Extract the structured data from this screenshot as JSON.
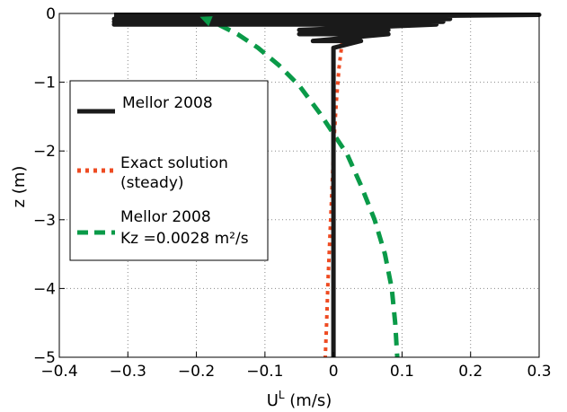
{
  "chart_data": {
    "type": "line",
    "title": "",
    "xlabel": "U",
    "xlabel_superscript": "L",
    "xlabel_units": " (m/s)",
    "ylabel": "z (m)",
    "xlim": [
      -0.4,
      0.3
    ],
    "ylim": [
      -5,
      0
    ],
    "xticks": [
      -0.4,
      -0.3,
      -0.2,
      -0.1,
      0,
      0.1,
      0.2,
      0.3
    ],
    "xtick_labels": [
      "−0.4",
      "−0.3",
      "−0.2",
      "−0.1",
      "0",
      "0.1",
      "0.2",
      "0.3"
    ],
    "yticks": [
      0,
      -1,
      -2,
      -3,
      -4,
      -5
    ],
    "ytick_labels": [
      "0",
      "−1",
      "−2",
      "−3",
      "−4",
      "−5"
    ],
    "grid": true,
    "legend_position": "left",
    "series": [
      {
        "name": "Mellor 2008",
        "color": "#1a1a1a",
        "style": "solid",
        "x": [
          -0.32,
          0.3,
          -0.32,
          0.17,
          -0.32,
          0.16,
          -0.32,
          0.15,
          -0.05,
          0.08,
          -0.05,
          0.08,
          -0.03,
          0.04,
          0.0,
          0.0
        ],
        "y": [
          -0.02,
          -0.02,
          -0.08,
          -0.08,
          -0.12,
          -0.12,
          -0.16,
          -0.16,
          -0.24,
          -0.24,
          -0.3,
          -0.3,
          -0.4,
          -0.4,
          -0.5,
          -5.0
        ]
      },
      {
        "name": "Exact solution (steady)",
        "name_line2": "(steady)",
        "name_line1": "Exact solution",
        "color": "#ee4b22",
        "style": "dotted",
        "x": [
          0.016,
          0.014,
          0.008,
          0.004,
          0.001,
          -0.002,
          -0.005,
          -0.008,
          -0.01,
          -0.012
        ],
        "y": [
          -0.05,
          -0.3,
          -0.8,
          -1.3,
          -1.8,
          -2.5,
          -3.2,
          -3.9,
          -4.5,
          -5.0
        ]
      },
      {
        "name": "Mellor 2008 Kz =0.0028 m²/s",
        "name_line1": "Mellor 2008",
        "name_line2": "Kz =0.0028 m²/s",
        "color": "#0a9a48",
        "style": "dashed",
        "x": [
          -0.195,
          -0.17,
          -0.14,
          -0.11,
          -0.08,
          -0.05,
          -0.02,
          0.0,
          0.02,
          0.04,
          0.06,
          0.075,
          0.085,
          0.09,
          0.093
        ],
        "y": [
          -0.05,
          -0.15,
          -0.3,
          -0.5,
          -0.75,
          -1.05,
          -1.45,
          -1.75,
          -2.05,
          -2.5,
          -3.0,
          -3.5,
          -4.0,
          -4.5,
          -5.0
        ]
      }
    ]
  }
}
